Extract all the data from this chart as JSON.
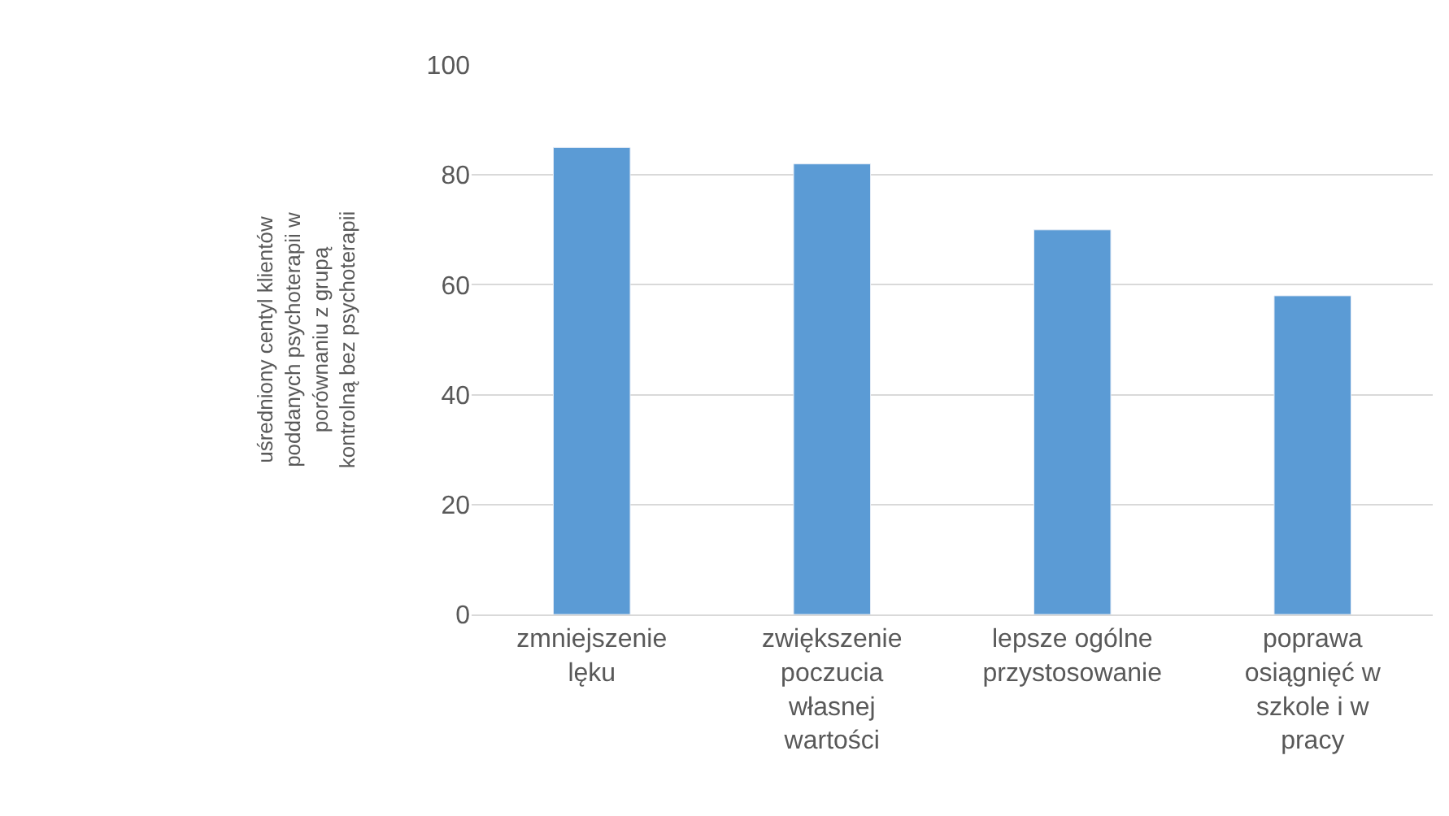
{
  "chart_data": {
    "type": "bar",
    "ylabel": "uśredniony centyl klientów poddanych psychoterapii w porównaniu z grupą kontrolną bez psychoterapii",
    "categories": [
      "zmniejszenie lęku",
      "zwiększenie poczucia własnej wartości",
      "lepsze ogólne przystosowanie",
      "poprawa osiągnięć w szkole i w pracy"
    ],
    "values": [
      85,
      82,
      70,
      58
    ],
    "color": "#5b9bd5",
    "ylim": [
      0,
      100
    ],
    "yticks": [
      0,
      20,
      40,
      60,
      80,
      100
    ],
    "grid": "y"
  }
}
